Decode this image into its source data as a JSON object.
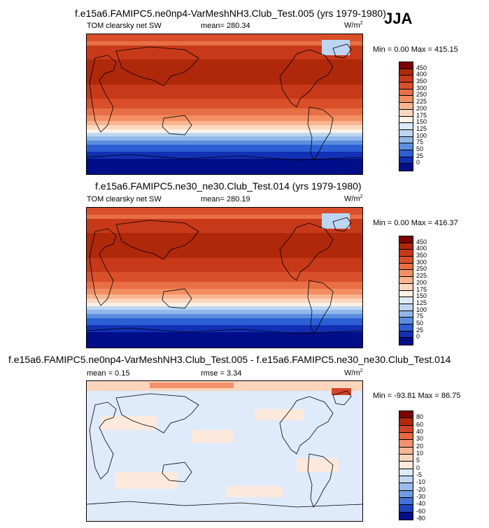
{
  "season": "JJA",
  "panels": [
    {
      "title": "f.e15a6.FAMIPC5.ne0np4-VarMeshNH3.Club_Test.005 (yrs 1979-1980)",
      "left_label": "TOM clearsky net SW",
      "center_label": "mean= 280.34",
      "units": "W/m",
      "units_sup": "2",
      "minmax": "Min =   0.00 Max = 415.15",
      "colorbar_labels": [
        "450",
        "400",
        "350",
        "300",
        "250",
        "225",
        "200",
        "175",
        "150",
        "125",
        "100",
        "75",
        "50",
        "25",
        "0"
      ]
    },
    {
      "title": "f.e15a6.FAMIPC5.ne30_ne30.Club_Test.014 (yrs 1979-1980)",
      "left_label": "TOM clearsky net SW",
      "center_label": "mean= 280.19",
      "units": "W/m",
      "units_sup": "2",
      "minmax": "Min =   0.00 Max = 416.37",
      "colorbar_labels": [
        "450",
        "400",
        "350",
        "300",
        "250",
        "225",
        "200",
        "175",
        "150",
        "125",
        "100",
        "75",
        "50",
        "25",
        "0"
      ]
    },
    {
      "title": "f.e15a6.FAMIPC5.ne0np4-VarMeshNH3.Club_Test.005 - f.e15a6.FAMIPC5.ne30_ne30.Club_Test.014",
      "left_label": "mean =   0.15",
      "center_label": "rmse =   3.34",
      "units": "W/m",
      "units_sup": "2",
      "minmax": "Min = -93.81 Max =  86.75",
      "colorbar_labels": [
        "80",
        "60",
        "40",
        "30",
        "20",
        "10",
        "5",
        "0",
        "-5",
        "-10",
        "-20",
        "-30",
        "-40",
        "-60",
        "-80"
      ]
    }
  ],
  "colors": {
    "abs_scale": [
      "#7f0000",
      "#b0280a",
      "#c8391a",
      "#d94f2a",
      "#e86f45",
      "#f38f63",
      "#f8b490",
      "#fbd7bf",
      "#fdf0e6",
      "#dce9f8",
      "#bcd6f2",
      "#92b8ea",
      "#5c8ee0",
      "#2d5fd4",
      "#1130b5",
      "#000e8a"
    ],
    "diff_scale": [
      "#7f0000",
      "#b0280a",
      "#d44327",
      "#e8673f",
      "#f3916a",
      "#f8b493",
      "#fbd6bd",
      "#fde9dc",
      "#dfeafa",
      "#c0d8f4",
      "#99bcec",
      "#6f9ae2",
      "#4470d6",
      "#1d45c2",
      "#000e8a"
    ]
  }
}
